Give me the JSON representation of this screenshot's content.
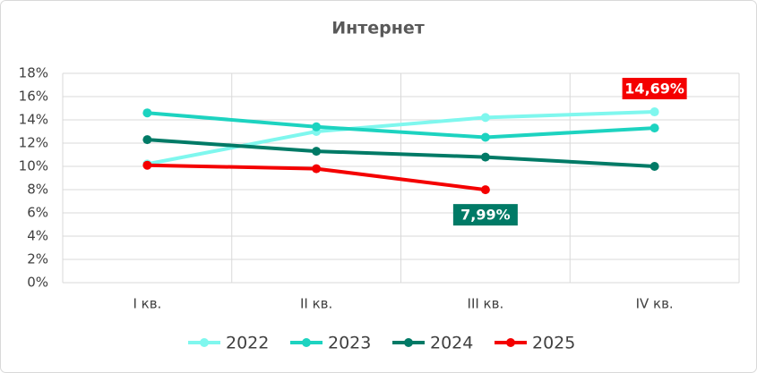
{
  "chart_data": {
    "type": "line",
    "title": "Интернет",
    "categories": [
      "I кв.",
      "II кв.",
      "III кв.",
      "IV кв."
    ],
    "series": [
      {
        "name": "2022",
        "color": "#7ff7ee",
        "values": [
          10.2,
          13.0,
          14.2,
          14.69
        ],
        "value_labels": [
          null,
          null,
          null,
          "14,69%"
        ],
        "label_color": "#f40000"
      },
      {
        "name": "2023",
        "color": "#1dd3c0",
        "values": [
          14.6,
          13.4,
          12.5,
          13.3
        ]
      },
      {
        "name": "2024",
        "color": "#007a66",
        "values": [
          12.3,
          11.3,
          10.8,
          10.0
        ]
      },
      {
        "name": "2025",
        "color": "#f40000",
        "values": [
          10.1,
          9.8,
          7.99,
          null
        ],
        "value_labels": [
          null,
          null,
          "7,99%",
          null
        ],
        "label_color": "#007a66"
      }
    ],
    "ylim": [
      0,
      18
    ],
    "yticks": [
      {
        "value": 0,
        "label": "0%"
      },
      {
        "value": 2,
        "label": "2%"
      },
      {
        "value": 4,
        "label": "4%"
      },
      {
        "value": 6,
        "label": "6%"
      },
      {
        "value": 8,
        "label": "8%"
      },
      {
        "value": 10,
        "label": "10%"
      },
      {
        "value": 12,
        "label": "12%"
      },
      {
        "value": 14,
        "label": "14%"
      },
      {
        "value": 16,
        "label": "16%"
      },
      {
        "value": 18,
        "label": "18%"
      }
    ],
    "grid": true,
    "legend": "bottom"
  }
}
